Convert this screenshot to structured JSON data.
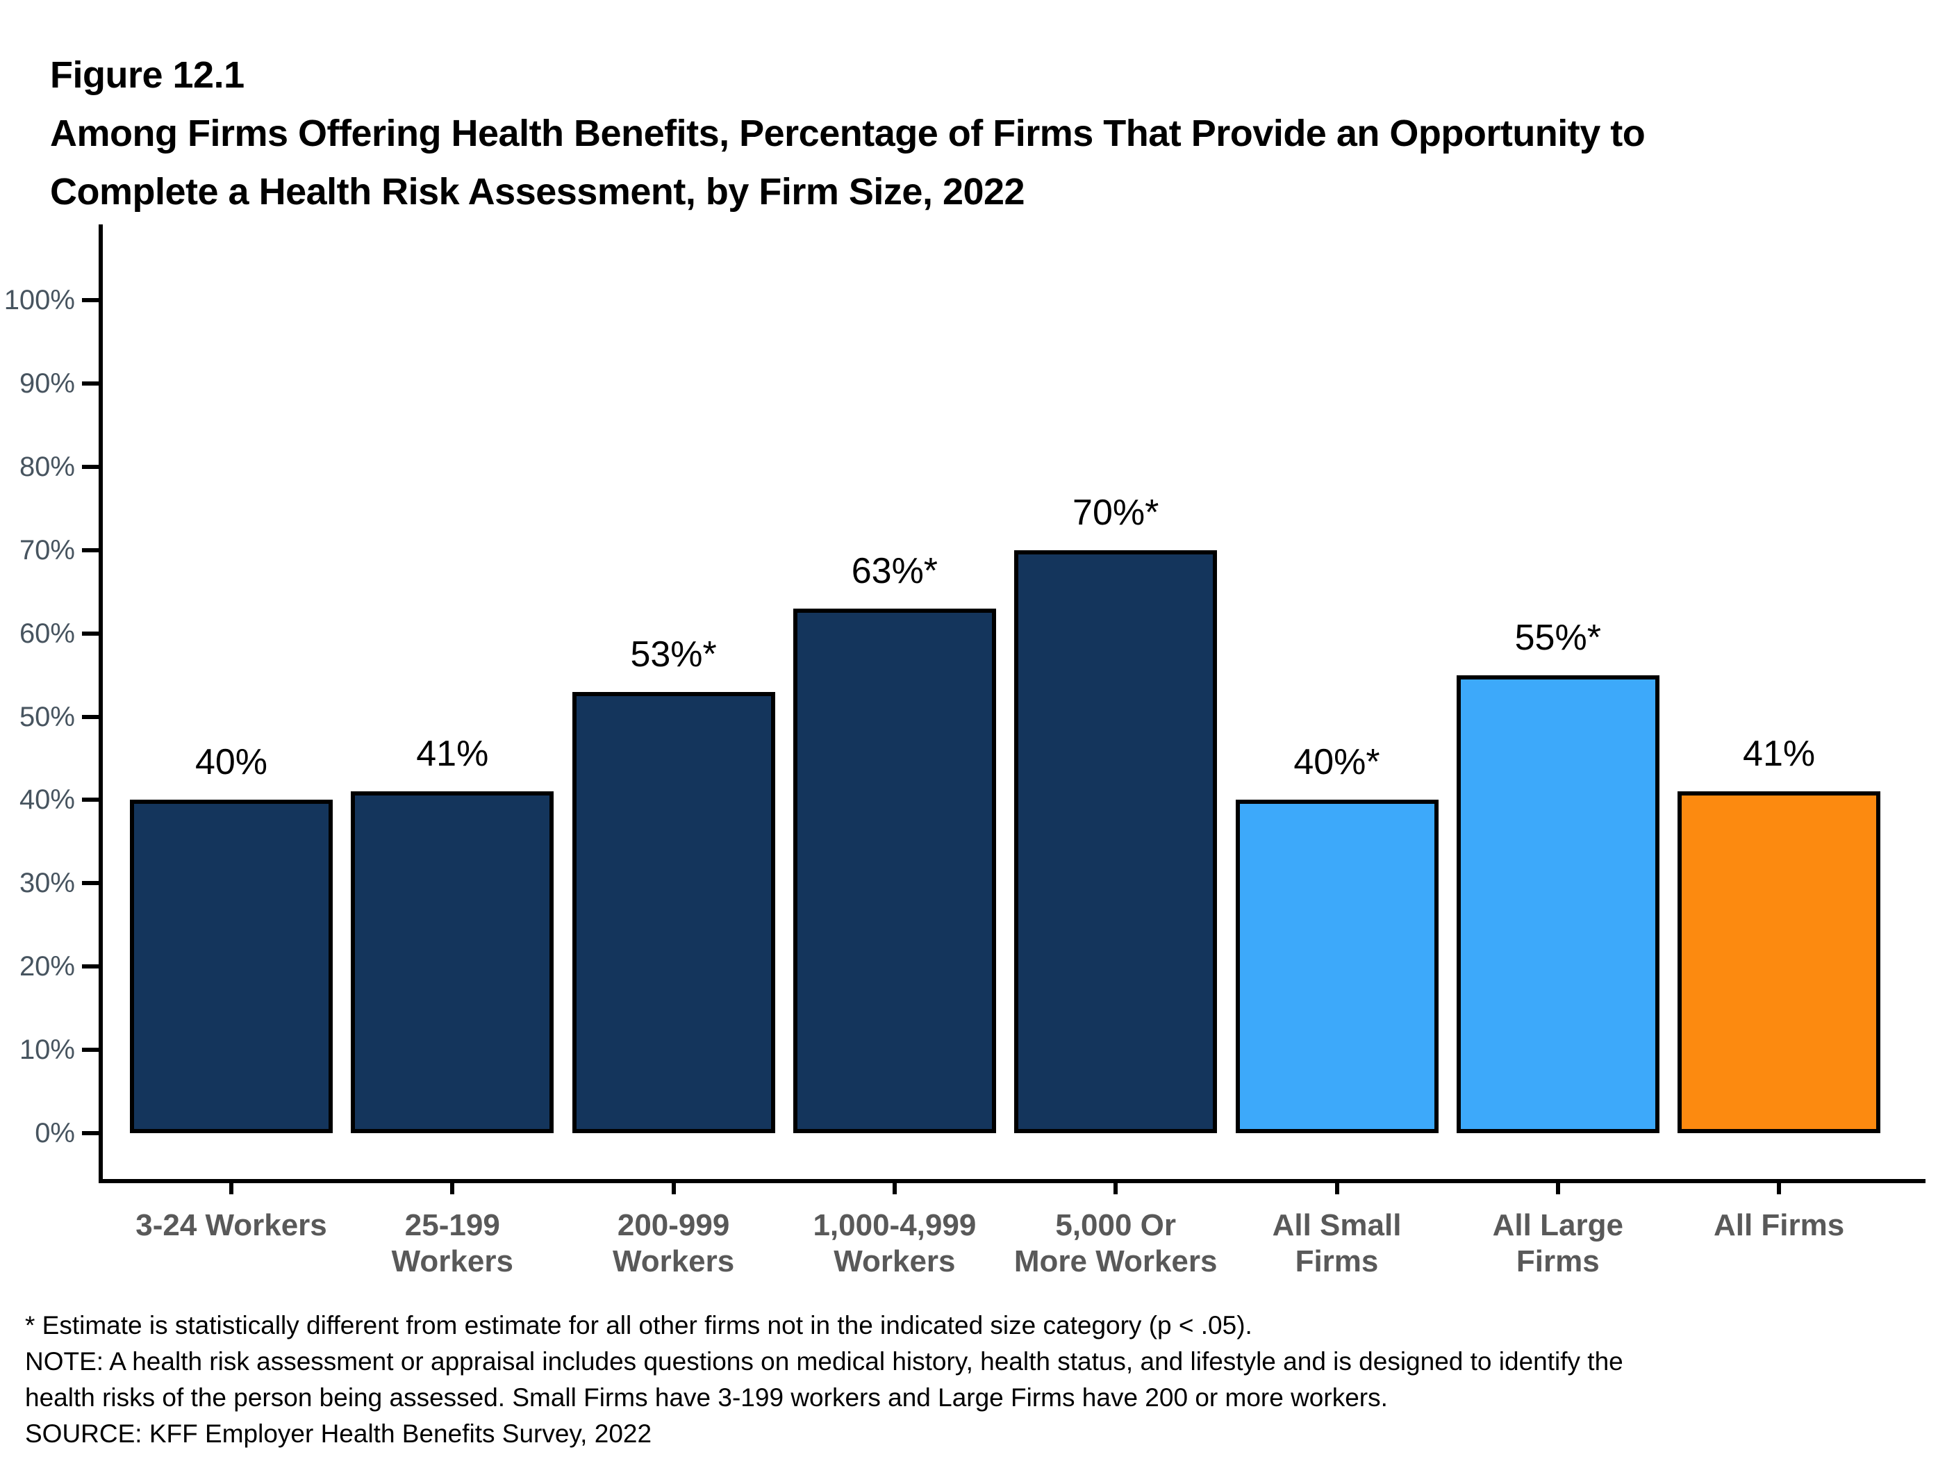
{
  "figure": {
    "number": "Figure 12.1",
    "title_line1": "Among Firms Offering Health Benefits, Percentage of Firms That Provide an Opportunity to",
    "title_line2": "Complete a Health Risk Assessment, by Firm Size, 2022"
  },
  "chart_data": {
    "type": "bar",
    "title": "Among Firms Offering Health Benefits, Percentage of Firms That Provide an Opportunity to Complete a Health Risk Assessment, by Firm Size, 2022",
    "categories": [
      "3-24 Workers",
      "25-199\nWorkers",
      "200-999\nWorkers",
      "1,000-4,999\nWorkers",
      "5,000 Or\nMore Workers",
      "All Small\nFirms",
      "All Large\nFirms",
      "All Firms"
    ],
    "values": [
      40,
      41,
      53,
      63,
      70,
      40,
      55,
      41
    ],
    "bar_labels": [
      "40%",
      "41%",
      "53%*",
      "63%*",
      "70%*",
      "40%*",
      "55%*",
      "41%"
    ],
    "bar_colors": [
      "#14355C",
      "#14355C",
      "#14355C",
      "#14355C",
      "#14355C",
      "#3DA9FA",
      "#3DA9FA",
      "#FC8A10"
    ],
    "xlabel": "",
    "ylabel": "",
    "ylim": [
      0,
      100
    ],
    "ytick_step": 10,
    "ytick_labels": [
      "0%",
      "10%",
      "20%",
      "30%",
      "40%",
      "50%",
      "60%",
      "70%",
      "80%",
      "90%",
      "100%"
    ],
    "grid": false,
    "legend": false,
    "colors": {
      "small_large_category_bar": "#14355C",
      "all_small_large_bar": "#3DA9FA",
      "all_firms_bar": "#FC8A10",
      "axis": "#000000",
      "ytick_label": "#47545f",
      "xtick_label": "#595959"
    }
  },
  "footnotes": {
    "lines": [
      "* Estimate is statistically different from estimate for all other firms not in the indicated size category (p < .05).",
      "NOTE: A health risk assessment or appraisal includes questions on medical history, health status, and lifestyle and is designed to identify the",
      "health risks of the person being assessed. Small Firms have 3-199 workers and Large Firms have 200 or more workers.",
      "SOURCE: KFF Employer Health Benefits Survey, 2022"
    ]
  }
}
